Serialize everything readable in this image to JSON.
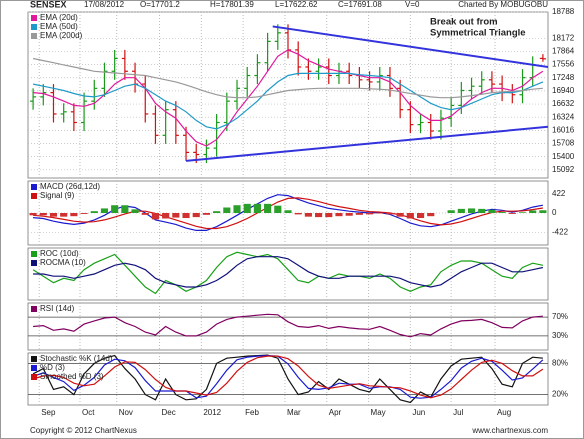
{
  "header": {
    "name": "SENSEX",
    "date": "17/08/2012",
    "open": "O=17701.2",
    "high": "H=17801.39",
    "low": "L=17622.62",
    "close": "C=17691.08",
    "volume": "V=0",
    "charted_by": "Charted By MOBUGOBU"
  },
  "footer": {
    "copyright": "Copyright © 2012 ChartNexus",
    "website": "www.chartnexus.com"
  },
  "chart_data": [
    {
      "type": "ohlc",
      "xlim": [
        -0.5,
        50.5
      ],
      "ylim": [
        14900,
        18788
      ],
      "grid": true,
      "up_color": "#1a9a1a",
      "down_color": "#d01010",
      "yticks": [
        18788,
        18172,
        17864,
        17556,
        17248,
        16940,
        16632,
        16324,
        16016,
        15708,
        15400,
        15092
      ],
      "open": [
        16700,
        16800,
        16900,
        16400,
        16450,
        16200,
        16700,
        17000,
        17400,
        17700,
        17400,
        17100,
        16400,
        15900,
        16500,
        15900,
        15500,
        15450,
        15600,
        16200,
        16700,
        17000,
        17300,
        17600,
        18100,
        18300,
        17900,
        17500,
        17400,
        17500,
        17300,
        17400,
        17300,
        17200,
        17150,
        17300,
        17000,
        16500,
        16150,
        16200,
        16000,
        16300,
        16600,
        16950,
        17050,
        17200,
        17100,
        16900,
        16850,
        17250,
        17701
      ],
      "high": [
        17000,
        17100,
        17100,
        16650,
        16650,
        16900,
        17200,
        17600,
        17900,
        17900,
        17600,
        17300,
        16600,
        16700,
        16700,
        16100,
        15700,
        15800,
        16400,
        16900,
        17200,
        17500,
        17800,
        18300,
        18500,
        18500,
        18100,
        17700,
        17700,
        17700,
        17600,
        17600,
        17500,
        17400,
        17500,
        17500,
        17200,
        16700,
        16400,
        16400,
        16500,
        16800,
        17150,
        17250,
        17400,
        17400,
        17300,
        17100,
        17450,
        17750,
        17801
      ],
      "low": [
        16500,
        16600,
        16200,
        16200,
        16000,
        16000,
        16500,
        16800,
        17200,
        17200,
        16900,
        16200,
        15700,
        15700,
        15700,
        15300,
        15250,
        15250,
        15400,
        16000,
        16500,
        16800,
        17100,
        17400,
        17900,
        17700,
        17300,
        17200,
        17200,
        17100,
        17100,
        17100,
        17000,
        16950,
        16950,
        16800,
        16300,
        15950,
        15950,
        15800,
        15800,
        16100,
        16400,
        16750,
        16850,
        16900,
        16700,
        16650,
        16650,
        17050,
        17623
      ],
      "close": [
        16800,
        16900,
        16400,
        16450,
        16200,
        16700,
        17000,
        17400,
        17700,
        17400,
        17100,
        16400,
        15900,
        16500,
        15900,
        15500,
        15450,
        15600,
        16200,
        16700,
        17000,
        17300,
        17600,
        18100,
        18300,
        17900,
        17500,
        17400,
        17500,
        17300,
        17400,
        17300,
        17200,
        17150,
        17300,
        17000,
        16500,
        16150,
        16200,
        16000,
        16300,
        16600,
        16950,
        17050,
        17200,
        17100,
        16900,
        16850,
        17250,
        17550,
        17691
      ],
      "series": [
        {
          "name": "EMA (20d)",
          "color": "#e0189e",
          "values": [
            16900,
            16880,
            16800,
            16700,
            16600,
            16580,
            16650,
            16850,
            17100,
            17250,
            17250,
            17000,
            16650,
            16450,
            16300,
            16000,
            15750,
            15650,
            15800,
            16100,
            16450,
            16750,
            17050,
            17400,
            17750,
            17900,
            17800,
            17650,
            17550,
            17450,
            17400,
            17350,
            17300,
            17250,
            17250,
            17150,
            16900,
            16600,
            16400,
            16250,
            16250,
            16350,
            16550,
            16750,
            16900,
            17000,
            17000,
            16950,
            17050,
            17250,
            17400
          ]
        },
        {
          "name": "EMA (50d)",
          "color": "#1e9ac8",
          "values": [
            17100,
            17050,
            17000,
            16950,
            16880,
            16820,
            16800,
            16850,
            16950,
            17050,
            17100,
            17000,
            16850,
            16700,
            16600,
            16450,
            16250,
            16100,
            16050,
            16150,
            16300,
            16500,
            16700,
            16950,
            17150,
            17300,
            17350,
            17350,
            17350,
            17350,
            17350,
            17350,
            17320,
            17300,
            17280,
            17250,
            17100,
            16950,
            16800,
            16650,
            16550,
            16500,
            16550,
            16650,
            16750,
            16850,
            16900,
            16900,
            16950,
            17050,
            17150
          ]
        },
        {
          "name": "EMA (200d)",
          "color": "#999999",
          "values": [
            17700,
            17650,
            17600,
            17550,
            17500,
            17450,
            17400,
            17380,
            17360,
            17340,
            17320,
            17300,
            17250,
            17200,
            17150,
            17080,
            17000,
            16920,
            16850,
            16800,
            16780,
            16780,
            16800,
            16850,
            16900,
            16950,
            16970,
            16990,
            17000,
            17000,
            17000,
            17000,
            17000,
            16990,
            16980,
            16960,
            16920,
            16880,
            16840,
            16800,
            16780,
            16780,
            16800,
            16830,
            16860,
            16900,
            16920,
            16930,
            16950,
            16980,
            17000
          ]
        }
      ],
      "trendlines": [
        {
          "color": "#3333dd",
          "x": [
            23.5,
            50.5
          ],
          "y": [
            18450,
            17500
          ]
        },
        {
          "color": "#3333dd",
          "x": [
            15,
            50.5
          ],
          "y": [
            15300,
            16100
          ]
        }
      ],
      "annotation": {
        "color": "#1a1aee",
        "text": [
          "Break out from",
          "Symmetrical Triangle"
        ]
      }
    },
    {
      "type": "line",
      "xlim": [
        -0.5,
        50.5
      ],
      "ylim": [
        -700,
        700
      ],
      "grid": true,
      "yticks": [
        422,
        0,
        -422
      ],
      "series": [
        {
          "name": "MACD (26d,12d)",
          "color": "#1a1ad0",
          "values": [
            -100,
            -120,
            -180,
            -220,
            -250,
            -220,
            -150,
            -50,
            80,
            150,
            120,
            0,
            -150,
            -200,
            -250,
            -330,
            -380,
            -380,
            -300,
            -180,
            -50,
            80,
            200,
            320,
            400,
            380,
            300,
            220,
            160,
            100,
            70,
            40,
            20,
            0,
            10,
            -30,
            -120,
            -220,
            -280,
            -300,
            -260,
            -180,
            -100,
            -20,
            40,
            80,
            60,
            20,
            60,
            130,
            170
          ]
        },
        {
          "name": "Signal (9)",
          "color": "#d01010",
          "values": [
            -50,
            -70,
            -100,
            -140,
            -180,
            -200,
            -190,
            -150,
            -90,
            -20,
            40,
            40,
            -10,
            -80,
            -150,
            -220,
            -290,
            -340,
            -340,
            -300,
            -220,
            -120,
            0,
            120,
            240,
            320,
            330,
            300,
            250,
            190,
            140,
            100,
            60,
            30,
            20,
            0,
            -40,
            -100,
            -170,
            -230,
            -260,
            -240,
            -190,
            -120,
            -50,
            10,
            40,
            40,
            45,
            75,
            110
          ]
        },
        {
          "kind": "bar",
          "up_color": "#2aa02a",
          "down_color": "#d03030",
          "values": [
            -50,
            -50,
            -80,
            -80,
            -70,
            -20,
            40,
            100,
            170,
            170,
            80,
            -40,
            -140,
            -120,
            -100,
            -110,
            -90,
            -40,
            40,
            120,
            170,
            200,
            200,
            200,
            160,
            60,
            -30,
            -80,
            -90,
            -90,
            -70,
            -60,
            -40,
            -30,
            -10,
            -30,
            -80,
            -120,
            -110,
            -70,
            0,
            60,
            90,
            100,
            90,
            70,
            20,
            -20,
            15,
            55,
            60
          ]
        }
      ]
    },
    {
      "type": "line",
      "xlim": [
        -0.5,
        50.5
      ],
      "ylim": [
        -12,
        12
      ],
      "grid": false,
      "series": [
        {
          "name": "ROC (10d)",
          "color": "#18a018",
          "values": [
            2,
            -1,
            -4,
            -2,
            -3,
            2,
            5,
            7,
            9,
            4,
            -1,
            -6,
            -9,
            -3,
            -5,
            -8,
            -6,
            -3,
            3,
            8,
            10,
            9,
            8,
            9,
            7,
            2,
            -3,
            -4,
            -1,
            -2,
            0,
            -1,
            -1,
            -2,
            0,
            -2,
            -6,
            -8,
            -6,
            -5,
            1,
            4,
            6,
            6,
            5,
            2,
            -1,
            -2,
            3,
            5,
            4
          ]
        },
        {
          "name": "ROCMA (10)",
          "color": "#10107a",
          "values": [
            0,
            0,
            -1,
            -1,
            -2,
            -1,
            0,
            2,
            4,
            5,
            4,
            2,
            -2,
            -4,
            -5,
            -6,
            -6,
            -5,
            -3,
            0,
            4,
            7,
            8,
            8,
            8,
            7,
            4,
            1,
            -1,
            -2,
            -2,
            -1,
            -1,
            -1,
            -1,
            -1,
            -2,
            -4,
            -5,
            -6,
            -5,
            -2,
            1,
            3,
            5,
            5,
            3,
            1,
            1,
            2,
            3
          ]
        }
      ]
    },
    {
      "type": "line",
      "xlim": [
        -0.5,
        50.5
      ],
      "ylim": [
        0,
        100
      ],
      "grid": true,
      "yticks": [
        {
          "value": 70,
          "label": "70%"
        },
        {
          "value": 30,
          "label": "30%"
        }
      ],
      "series": [
        {
          "name": "RSI (14d)",
          "color": "#800060",
          "values": [
            50,
            52,
            42,
            45,
            40,
            55,
            62,
            68,
            70,
            58,
            50,
            38,
            32,
            50,
            38,
            30,
            30,
            38,
            55,
            65,
            70,
            72,
            74,
            76,
            75,
            60,
            50,
            48,
            52,
            46,
            50,
            47,
            45,
            44,
            50,
            42,
            33,
            28,
            35,
            32,
            45,
            55,
            62,
            63,
            65,
            58,
            48,
            47,
            62,
            70,
            72
          ]
        }
      ]
    },
    {
      "type": "line",
      "xlim": [
        -0.5,
        50.5
      ],
      "ylim": [
        0,
        100
      ],
      "grid": true,
      "yticks": [
        {
          "value": 80,
          "label": "80%"
        },
        {
          "value": 20,
          "label": "20%"
        }
      ],
      "xticks": [
        {
          "value": 0.6,
          "label": "Sep"
        },
        {
          "value": 4.6,
          "label": "Oct"
        },
        {
          "value": 8.2,
          "label": "Nov"
        },
        {
          "value": 12.4,
          "label": "Dec"
        },
        {
          "value": 16.5,
          "label": "2012"
        },
        {
          "value": 20.6,
          "label": "Feb"
        },
        {
          "value": 24.7,
          "label": "Mar"
        },
        {
          "value": 28.8,
          "label": "Apr"
        },
        {
          "value": 32.9,
          "label": "May"
        },
        {
          "value": 37,
          "label": "Jun"
        },
        {
          "value": 41,
          "label": "Jul"
        },
        {
          "value": 45.3,
          "label": "Aug"
        }
      ],
      "series": [
        {
          "name": "Stochastic %K (14d)",
          "color": "#111111",
          "values": [
            60,
            70,
            30,
            35,
            20,
            60,
            80,
            90,
            95,
            70,
            50,
            20,
            10,
            50,
            20,
            10,
            12,
            30,
            80,
            90,
            92,
            94,
            95,
            96,
            90,
            50,
            20,
            25,
            45,
            30,
            50,
            40,
            30,
            25,
            50,
            30,
            10,
            5,
            25,
            15,
            50,
            75,
            88,
            90,
            92,
            70,
            40,
            35,
            80,
            92,
            90
          ]
        },
        {
          "name": "%D (3)",
          "color": "#1a1ad0",
          "values": [
            55,
            62,
            53,
            45,
            28,
            38,
            53,
            77,
            88,
            85,
            72,
            47,
            27,
            27,
            27,
            27,
            14,
            17,
            41,
            67,
            87,
            92,
            94,
            95,
            94,
            79,
            53,
            32,
            30,
            33,
            42,
            40,
            40,
            32,
            35,
            35,
            30,
            15,
            13,
            15,
            30,
            47,
            71,
            84,
            90,
            84,
            67,
            48,
            52,
            69,
            87
          ]
        },
        {
          "name": "Smoothed %D (3)",
          "color": "#d01010",
          "values": [
            50,
            56,
            57,
            53,
            42,
            37,
            40,
            56,
            73,
            83,
            82,
            68,
            49,
            34,
            27,
            27,
            23,
            19,
            24,
            42,
            65,
            82,
            91,
            94,
            94,
            89,
            75,
            55,
            38,
            32,
            35,
            38,
            41,
            37,
            36,
            34,
            33,
            27,
            19,
            14,
            19,
            31,
            49,
            67,
            82,
            86,
            80,
            66,
            56,
            56,
            69
          ]
        }
      ]
    }
  ]
}
